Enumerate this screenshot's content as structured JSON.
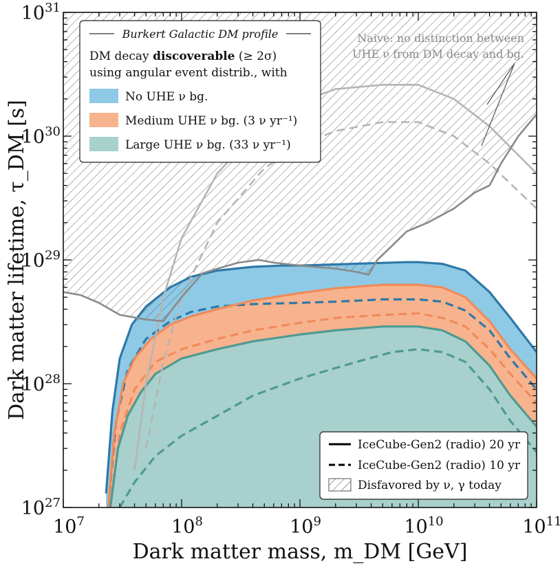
{
  "chart_data": {
    "type": "line",
    "xscale": "log",
    "yscale": "log",
    "xlim": [
      10000000.0,
      100000000000.0
    ],
    "ylim": [
      1e+27,
      1e+31
    ],
    "xlabel": "Dark matter mass, m_DM [GeV]",
    "ylabel": "Dark matter lifetime, τ_DM [s]",
    "x_ticks": [
      {
        "value": 10000000.0,
        "base": "10",
        "exp": "7"
      },
      {
        "value": 100000000.0,
        "base": "10",
        "exp": "8"
      },
      {
        "value": 1000000000.0,
        "base": "10",
        "exp": "9"
      },
      {
        "value": 10000000000.0,
        "base": "10",
        "exp": "10"
      },
      {
        "value": 100000000000.0,
        "base": "10",
        "exp": "11"
      }
    ],
    "y_ticks": [
      {
        "value": 1e+27,
        "base": "10",
        "exp": "27"
      },
      {
        "value": 1e+28,
        "base": "10",
        "exp": "28"
      },
      {
        "value": 1e+29,
        "base": "10",
        "exp": "29"
      },
      {
        "value": 1e+30,
        "base": "10",
        "exp": "30"
      },
      {
        "value": 1e+31,
        "base": "10",
        "exp": "31"
      }
    ],
    "legend_top": {
      "header": "Burkert Galactic DM profile",
      "line1_pre": "DM decay ",
      "line1_bold": "discoverable",
      "line1_post": " (≥ 2σ)",
      "line2": "using angular event distrib., with",
      "entries": [
        {
          "label": "No UHE ν bg.",
          "color": "#8ecae6"
        },
        {
          "label": "Medium UHE ν bg. (3 ν yr⁻¹)",
          "color": "#f7b38e"
        },
        {
          "label": "Large UHE ν bg. (33 ν yr⁻¹)",
          "color": "#a8d0cc"
        }
      ]
    },
    "legend_bottom": [
      {
        "label": "IceCube-Gen2 (radio) 20 yr",
        "style": "solid"
      },
      {
        "label": "IceCube-Gen2 (radio) 10 yr",
        "style": "dashed"
      },
      {
        "label": "Disfavored by ν, γ today",
        "style": "hatch"
      }
    ],
    "annotation": {
      "line1": "Naive: no distinction between",
      "line2": "UHE ν from DM decay and bg."
    },
    "colors": {
      "no_bg_line": "#2e78a8",
      "no_bg_fill": "#8ecae6",
      "medium_bg_line": "#f08a5a",
      "medium_bg_fill": "#f7b38e",
      "large_bg_line": "#4e9a92",
      "large_bg_fill": "#a8d0cc",
      "naive_line": "#b5b5b5",
      "disfavored_line": "#8a8a8a"
    },
    "series": [
      {
        "name": "No UHE ν bg.",
        "style": "solid",
        "x": [
          23000000.0,
          26000000.0,
          30000000.0,
          38000000.0,
          50000000.0,
          80000000.0,
          120000000.0,
          200000000.0,
          400000000.0,
          700000000.0,
          1000000000.0,
          2000000000.0,
          4000000000.0,
          8000000000.0,
          10000000000.0,
          16000000000.0,
          25000000000.0,
          40000000000.0,
          60000000000.0,
          100000000000.0
        ],
        "y": [
          1.3e+27,
          6e+27,
          1.6e+28,
          3e+28,
          4.2e+28,
          6e+28,
          7.3e+28,
          8.2e+28,
          8.8e+28,
          9e+28,
          9e+28,
          9.2e+28,
          9.4e+28,
          9.6e+28,
          9.6e+28,
          9.3e+28,
          8.2e+28,
          5.5e+28,
          3.4e+28,
          1.8e+28
        ]
      },
      {
        "name": "No UHE ν bg.",
        "style": "dashed",
        "x": [
          24000000.0,
          28000000.0,
          35000000.0,
          50000000.0,
          80000000.0,
          120000000.0,
          200000000.0,
          400000000.0,
          1000000000.0,
          2000000000.0,
          5000000000.0,
          10000000000.0,
          16000000000.0,
          25000000000.0,
          40000000000.0,
          60000000000.0,
          100000000000.0
        ],
        "y": [
          1e+27,
          5e+27,
          1.3e+28,
          2.3e+28,
          3.2e+28,
          3.8e+28,
          4.2e+28,
          4.4e+28,
          4.5e+28,
          4.6e+28,
          4.8e+28,
          4.8e+28,
          4.6e+28,
          3.9e+28,
          2.7e+28,
          1.6e+28,
          9e+27
        ]
      },
      {
        "name": "Medium UHE ν bg. (3 ν yr⁻¹)",
        "style": "solid",
        "x": [
          24000000.0,
          27000000.0,
          32000000.0,
          40000000.0,
          55000000.0,
          80000000.0,
          120000000.0,
          200000000.0,
          400000000.0,
          1000000000.0,
          2000000000.0,
          5000000000.0,
          10000000000.0,
          16000000000.0,
          25000000000.0,
          40000000000.0,
          60000000000.0,
          100000000000.0
        ],
        "y": [
          1e+27,
          4e+27,
          1e+28,
          1.6e+28,
          2.3e+28,
          3e+28,
          3.5e+28,
          4e+28,
          4.7e+28,
          5.4e+28,
          5.9e+28,
          6.3e+28,
          6.3e+28,
          6e+28,
          5e+28,
          3.2e+28,
          1.9e+28,
          1.1e+28
        ]
      },
      {
        "name": "Medium UHE ν bg. (3 ν yr⁻¹)",
        "style": "dashed",
        "x": [
          25000000.0,
          30000000.0,
          40000000.0,
          60000000.0,
          100000000.0,
          200000000.0,
          400000000.0,
          1000000000.0,
          2000000000.0,
          5000000000.0,
          10000000000.0,
          16000000000.0,
          25000000000.0,
          40000000000.0,
          60000000000.0,
          100000000000.0
        ],
        "y": [
          1e+27,
          4e+27,
          9e+27,
          1.5e+28,
          1.9e+28,
          2.3e+28,
          2.7e+28,
          3.1e+28,
          3.4e+28,
          3.6e+28,
          3.7e+28,
          3.4e+28,
          2.9e+28,
          1.9e+28,
          1.2e+28,
          7e+27
        ]
      },
      {
        "name": "Large UHE ν bg. (33 ν yr⁻¹)",
        "style": "solid",
        "x": [
          25000000.0,
          29000000.0,
          35000000.0,
          45000000.0,
          60000000.0,
          100000000.0,
          200000000.0,
          400000000.0,
          1000000000.0,
          2000000000.0,
          5000000000.0,
          10000000000.0,
          16000000000.0,
          25000000000.0,
          40000000000.0,
          60000000000.0,
          100000000000.0
        ],
        "y": [
          1e+27,
          3e+27,
          5.5e+27,
          8.5e+27,
          1.2e+28,
          1.6e+28,
          1.9e+28,
          2.2e+28,
          2.5e+28,
          2.7e+28,
          2.9e+28,
          2.9e+28,
          2.7e+28,
          2.2e+28,
          1.4e+28,
          8e+27,
          4.5e+27
        ]
      },
      {
        "name": "Large UHE ν bg. (33 ν yr⁻¹)",
        "style": "dashed",
        "x": [
          30000000.0,
          40000000.0,
          60000000.0,
          100000000.0,
          200000000.0,
          400000000.0,
          1000000000.0,
          3000000000.0,
          6000000000.0,
          10000000000.0,
          16000000000.0,
          25000000000.0,
          40000000000.0,
          60000000000.0,
          100000000000.0
        ],
        "y": [
          1e+27,
          1.6e+27,
          2.6e+27,
          3.8e+27,
          5.5e+27,
          8e+27,
          1.1e+28,
          1.5e+28,
          1.8e+28,
          1.9e+28,
          1.8e+28,
          1.5e+28,
          9e+27,
          5e+27,
          2.8e+27
        ]
      },
      {
        "name": "Naive: no distinction between UHE ν from DM decay and bg.",
        "style": "solid",
        "x": [
          40000000.0,
          50000000.0,
          70000000.0,
          100000000.0,
          200000000.0,
          500000000.0,
          1000000000.0,
          2000000000.0,
          5000000000.0,
          10000000000.0,
          20000000000.0,
          40000000000.0,
          100000000000.0
        ],
        "y": [
          2e+27,
          1e+28,
          5e+28,
          1.5e+29,
          5e+29,
          1.3e+30,
          1.9e+30,
          2.4e+30,
          2.6e+30,
          2.6e+30,
          2e+30,
          1.2e+30,
          5e+29
        ]
      },
      {
        "name": "Naive: no distinction between UHE ν from DM decay and bg.",
        "style": "dashed",
        "x": [
          50000000.0,
          70000000.0,
          100000000.0,
          200000000.0,
          500000000.0,
          1000000000.0,
          2000000000.0,
          5000000000.0,
          10000000000.0,
          20000000000.0,
          40000000000.0,
          100000000000.0
        ],
        "y": [
          3e+27,
          1.5e+28,
          5e+28,
          2e+29,
          5.5e+29,
          8.5e+29,
          1.1e+30,
          1.3e+30,
          1.3e+30,
          1e+30,
          6e+29,
          2.6e+29
        ]
      }
    ],
    "disfavored": {
      "name": "Disfavored by ν, γ today",
      "x": [
        10000000.0,
        14000000.0,
        20000000.0,
        30000000.0,
        50000000.0,
        70000000.0,
        80000000.0,
        100000000.0,
        150000000.0,
        200000000.0,
        300000000.0,
        450000000.0,
        600000000.0,
        1000000000.0,
        2000000000.0,
        3000000000.0,
        3800000000.0,
        4500000000.0,
        6000000000.0,
        8000000000.0,
        12000000000.0,
        20000000000.0,
        30000000000.0,
        40000000000.0,
        50000000000.0,
        70000000000.0,
        100000000000.0
      ],
      "y": [
        5.5e+28,
        5.2e+28,
        4.5e+28,
        3.6e+28,
        3.3e+28,
        3.2e+28,
        3.8e+28,
        5e+28,
        7.8e+28,
        8.5e+28,
        9.5e+28,
        1e+29,
        9.5e+28,
        9e+28,
        8.5e+28,
        8e+28,
        7.6e+28,
        1e+29,
        1.3e+29,
        1.7e+29,
        2e+29,
        2.6e+29,
        3.5e+29,
        4e+29,
        6e+29,
        1e+30,
        1.5e+30
      ]
    }
  }
}
